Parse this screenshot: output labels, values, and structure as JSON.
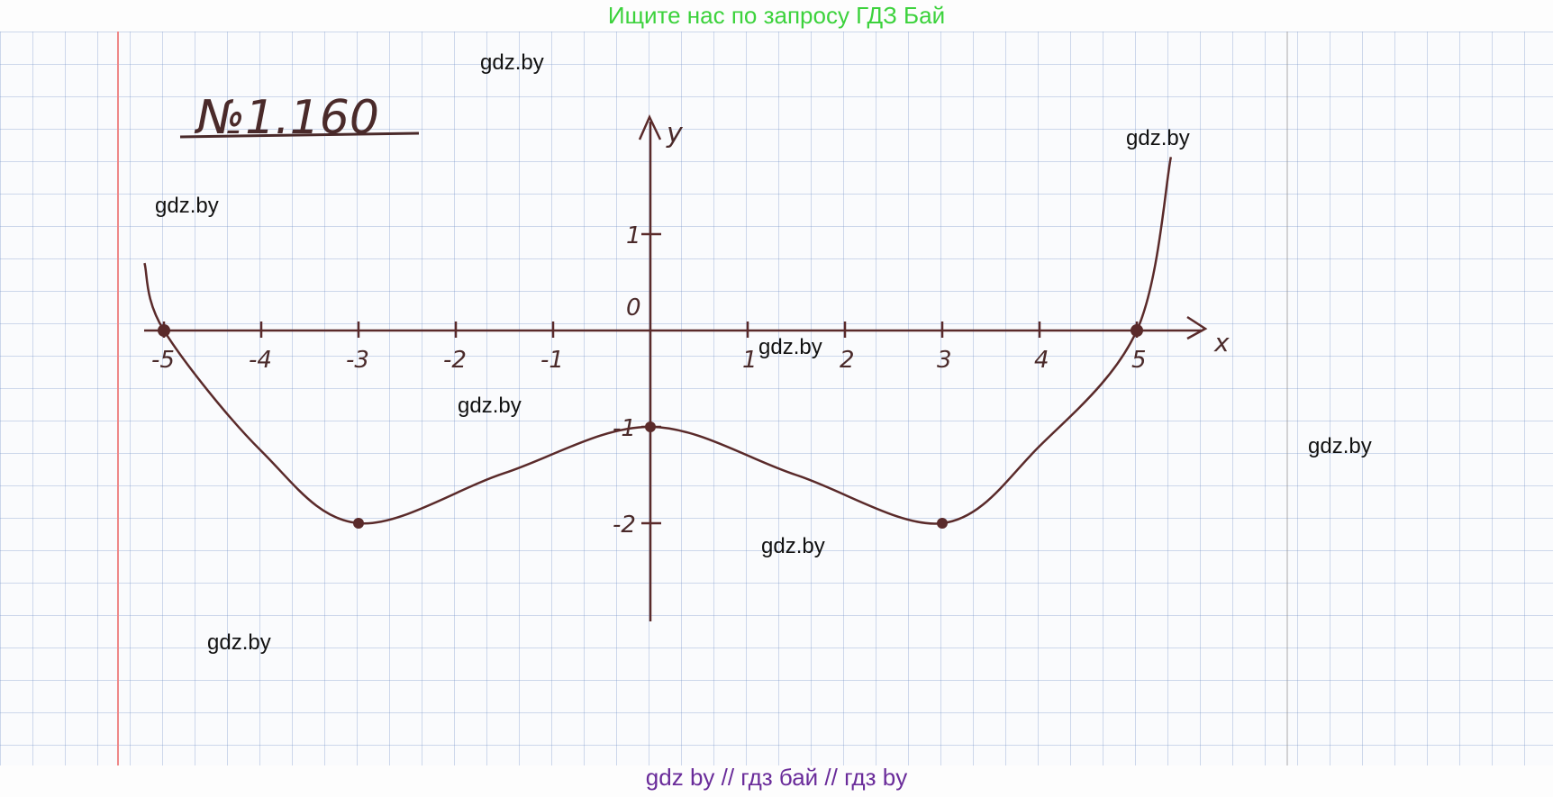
{
  "header": {
    "banner": "Ищите нас по запросу ГДЗ Бай"
  },
  "footer": {
    "banner": "gdz by  //  гдз бай  //  гдз by"
  },
  "watermarks": [
    "gdz.by",
    "gdz.by",
    "gdz.by",
    "gdz.by",
    "gdz.by",
    "gdz.by",
    "gdz.by",
    "gdz.by"
  ],
  "colors": {
    "ink": "#5a2a2a",
    "grid": "#7896c8",
    "margin": "#e88888",
    "banner_top": "#3cd23c",
    "banner_bottom": "#6a2c9a"
  },
  "chart_data": {
    "type": "line",
    "title": "№1.160",
    "xlabel": "x",
    "ylabel": "y",
    "xlim": [
      -5.2,
      5.6
    ],
    "ylim": [
      -3,
      2.2
    ],
    "x_ticks": [
      -5,
      -4,
      -3,
      -2,
      -1,
      1,
      2,
      3,
      4,
      5
    ],
    "x_tick_labels": [
      "-5",
      "-4",
      "-3",
      "-2",
      "-1",
      "1",
      "2",
      "3",
      "4",
      "5"
    ],
    "y_ticks": [
      1,
      0,
      -1,
      -2
    ],
    "y_tick_labels": [
      "1",
      "0",
      "-1",
      "-2"
    ],
    "grid": true,
    "series": [
      {
        "points": [
          [
            -5.2,
            0.7
          ],
          [
            -5,
            0
          ],
          [
            -4,
            -1.25
          ],
          [
            -3,
            -2
          ],
          [
            -1.5,
            -1.48
          ],
          [
            0,
            -1
          ],
          [
            1.5,
            -1.5
          ],
          [
            3,
            -2
          ],
          [
            4,
            -1.2
          ],
          [
            5,
            0
          ],
          [
            5.35,
            1.8
          ]
        ]
      }
    ],
    "marked_points": [
      [
        -5,
        0
      ],
      [
        -3,
        -2
      ],
      [
        0,
        -1
      ],
      [
        3,
        -2
      ],
      [
        5,
        0
      ]
    ]
  }
}
